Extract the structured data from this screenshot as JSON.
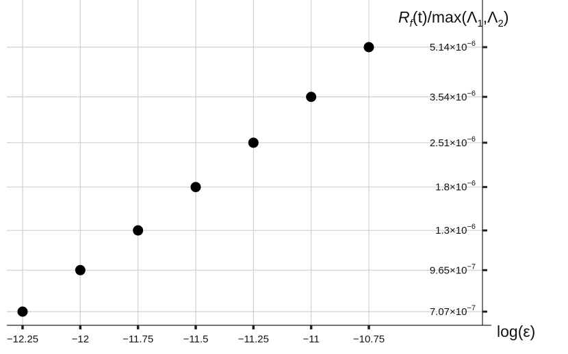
{
  "chart_data": {
    "type": "scatter",
    "title": "",
    "xlabel": "log(ε)",
    "ylabel": "R_f(t)/max(Λ_1,Λ_2)",
    "ylabel_parts": {
      "r": "R",
      "r_sub": "f",
      "rest": "(t)/max(Λ",
      "sub1": "1",
      "comma": ",Λ",
      "sub2": "2",
      "close": ")"
    },
    "y_scale": "log",
    "grid": true,
    "xlim": [
      -12.25,
      -10.75
    ],
    "x_ticks": [
      -12.25,
      -12,
      -11.75,
      -11.5,
      -11.25,
      -11,
      -10.75
    ],
    "x_tick_labels": [
      "-12.25",
      "-12",
      "-11.75",
      "-11.5",
      "-11.25",
      "-11",
      "-10.75"
    ],
    "y_ticks": [
      7.07e-07,
      9.65e-07,
      1.3e-06,
      1.8e-06,
      2.51e-06,
      3.54e-06,
      5.14e-06
    ],
    "y_tick_mantissas": [
      "7.07",
      "9.65",
      "1.3",
      "1.8",
      "2.51",
      "3.54",
      "5.14"
    ],
    "y_tick_exponents": [
      "-7",
      "-7",
      "-6",
      "-6",
      "-6",
      "-6",
      "-6"
    ],
    "points": [
      {
        "x": -12.25,
        "y": 7.07e-07
      },
      {
        "x": -12.0,
        "y": 9.65e-07
      },
      {
        "x": -11.75,
        "y": 1.3e-06
      },
      {
        "x": -11.5,
        "y": 1.8e-06
      },
      {
        "x": -11.25,
        "y": 2.51e-06
      },
      {
        "x": -11.0,
        "y": 3.54e-06
      },
      {
        "x": -10.75,
        "y": 5.14e-06
      }
    ],
    "colors": {
      "point": "#000000",
      "grid": "#cfcfcf",
      "axis": "#222222"
    }
  }
}
